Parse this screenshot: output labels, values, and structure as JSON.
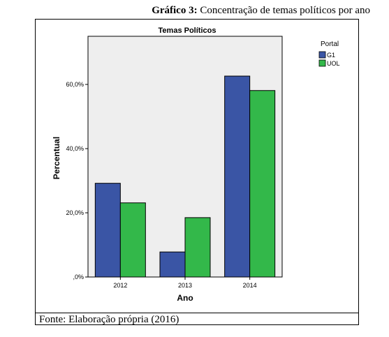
{
  "caption": {
    "label": "Gráfico 3:",
    "text": " Concentração de temas políticos por ano"
  },
  "source": "Fonte: Elaboração própria (2016)",
  "colors": {
    "G1": "#3a55a5",
    "UOL": "#33b84a",
    "plot_bg": "#eeeeee"
  },
  "chart_data": {
    "type": "bar",
    "title": "Temas Políticos",
    "xlabel": "Ano",
    "ylabel": "Percentual",
    "categories": [
      "2012",
      "2013",
      "2014"
    ],
    "ylim": [
      0,
      75
    ],
    "yticks": [
      0,
      20,
      40,
      60
    ],
    "ytick_labels": [
      ",0%",
      "20,0%",
      "40,0%",
      "60,0%"
    ],
    "grid": false,
    "legend": {
      "title": "Portal",
      "placement": "top-right"
    },
    "series": [
      {
        "name": "G1",
        "values": [
          29.2,
          7.8,
          62.6
        ]
      },
      {
        "name": "UOL",
        "values": [
          23.1,
          18.5,
          58.1
        ]
      }
    ]
  }
}
